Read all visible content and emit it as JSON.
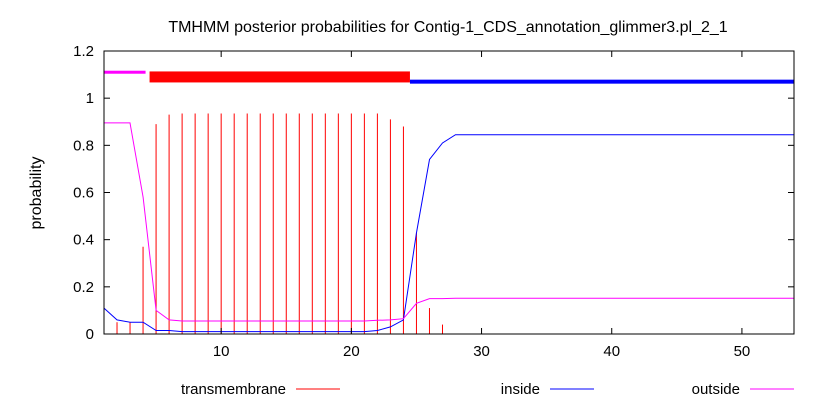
{
  "chart_data": {
    "type": "line",
    "title": "TMHMM posterior probabilities for Contig-1_CDS_annotation_glimmer3.pl_2_1",
    "xlabel": "",
    "ylabel": "probability",
    "xlim": [
      1,
      54
    ],
    "ylim": [
      0,
      1.2
    ],
    "x_ticks": [
      10,
      20,
      30,
      40,
      50
    ],
    "y_ticks": [
      0,
      0.2,
      0.4,
      0.6,
      0.8,
      1,
      1.2
    ],
    "grid": false,
    "legend_position": "bottom",
    "series": [
      {
        "name": "transmembrane",
        "style": "impulses",
        "color": "#ff0000",
        "x": [
          2,
          3,
          4,
          5,
          6,
          7,
          8,
          9,
          10,
          11,
          12,
          13,
          14,
          15,
          16,
          17,
          18,
          19,
          20,
          21,
          22,
          23,
          24,
          25,
          26,
          27
        ],
        "y": [
          0.05,
          0.05,
          0.37,
          0.89,
          0.93,
          0.935,
          0.935,
          0.935,
          0.935,
          0.935,
          0.935,
          0.935,
          0.935,
          0.935,
          0.935,
          0.935,
          0.935,
          0.935,
          0.935,
          0.935,
          0.935,
          0.91,
          0.88,
          0.43,
          0.11,
          0.04
        ]
      },
      {
        "name": "inside",
        "style": "line",
        "color": "#0000ff",
        "x": [
          1,
          2,
          3,
          4,
          5,
          6,
          7,
          8,
          9,
          10,
          11,
          12,
          13,
          14,
          15,
          16,
          17,
          18,
          19,
          20,
          21,
          22,
          23,
          24,
          25,
          26,
          27,
          28,
          29,
          30,
          54
        ],
        "y": [
          0.11,
          0.06,
          0.05,
          0.05,
          0.015,
          0.015,
          0.01,
          0.01,
          0.01,
          0.01,
          0.01,
          0.01,
          0.01,
          0.01,
          0.01,
          0.01,
          0.01,
          0.01,
          0.01,
          0.01,
          0.01,
          0.015,
          0.03,
          0.06,
          0.43,
          0.74,
          0.81,
          0.845,
          0.845,
          0.845,
          0.845
        ]
      },
      {
        "name": "outside",
        "style": "line",
        "color": "#ff00ff",
        "x": [
          1,
          2,
          3,
          4,
          5,
          6,
          7,
          8,
          9,
          10,
          11,
          12,
          13,
          14,
          15,
          16,
          17,
          18,
          19,
          20,
          21,
          22,
          23,
          24,
          25,
          26,
          27,
          28,
          54
        ],
        "y": [
          0.895,
          0.895,
          0.895,
          0.58,
          0.1,
          0.06,
          0.055,
          0.055,
          0.055,
          0.055,
          0.055,
          0.055,
          0.055,
          0.055,
          0.055,
          0.055,
          0.055,
          0.055,
          0.055,
          0.055,
          0.055,
          0.058,
          0.06,
          0.065,
          0.13,
          0.15,
          0.15,
          0.152,
          0.152
        ]
      }
    ],
    "topology_bars": [
      {
        "region": "outside",
        "color": "#ff00ff",
        "start": 1,
        "end": 4,
        "y": 1.11
      },
      {
        "region": "transmembrane",
        "color": "#ff0000",
        "start": 5,
        "end": 24,
        "y": 1.09
      },
      {
        "region": "inside",
        "color": "#0000ff",
        "start": 25,
        "end": 54,
        "y": 1.07
      }
    ]
  }
}
